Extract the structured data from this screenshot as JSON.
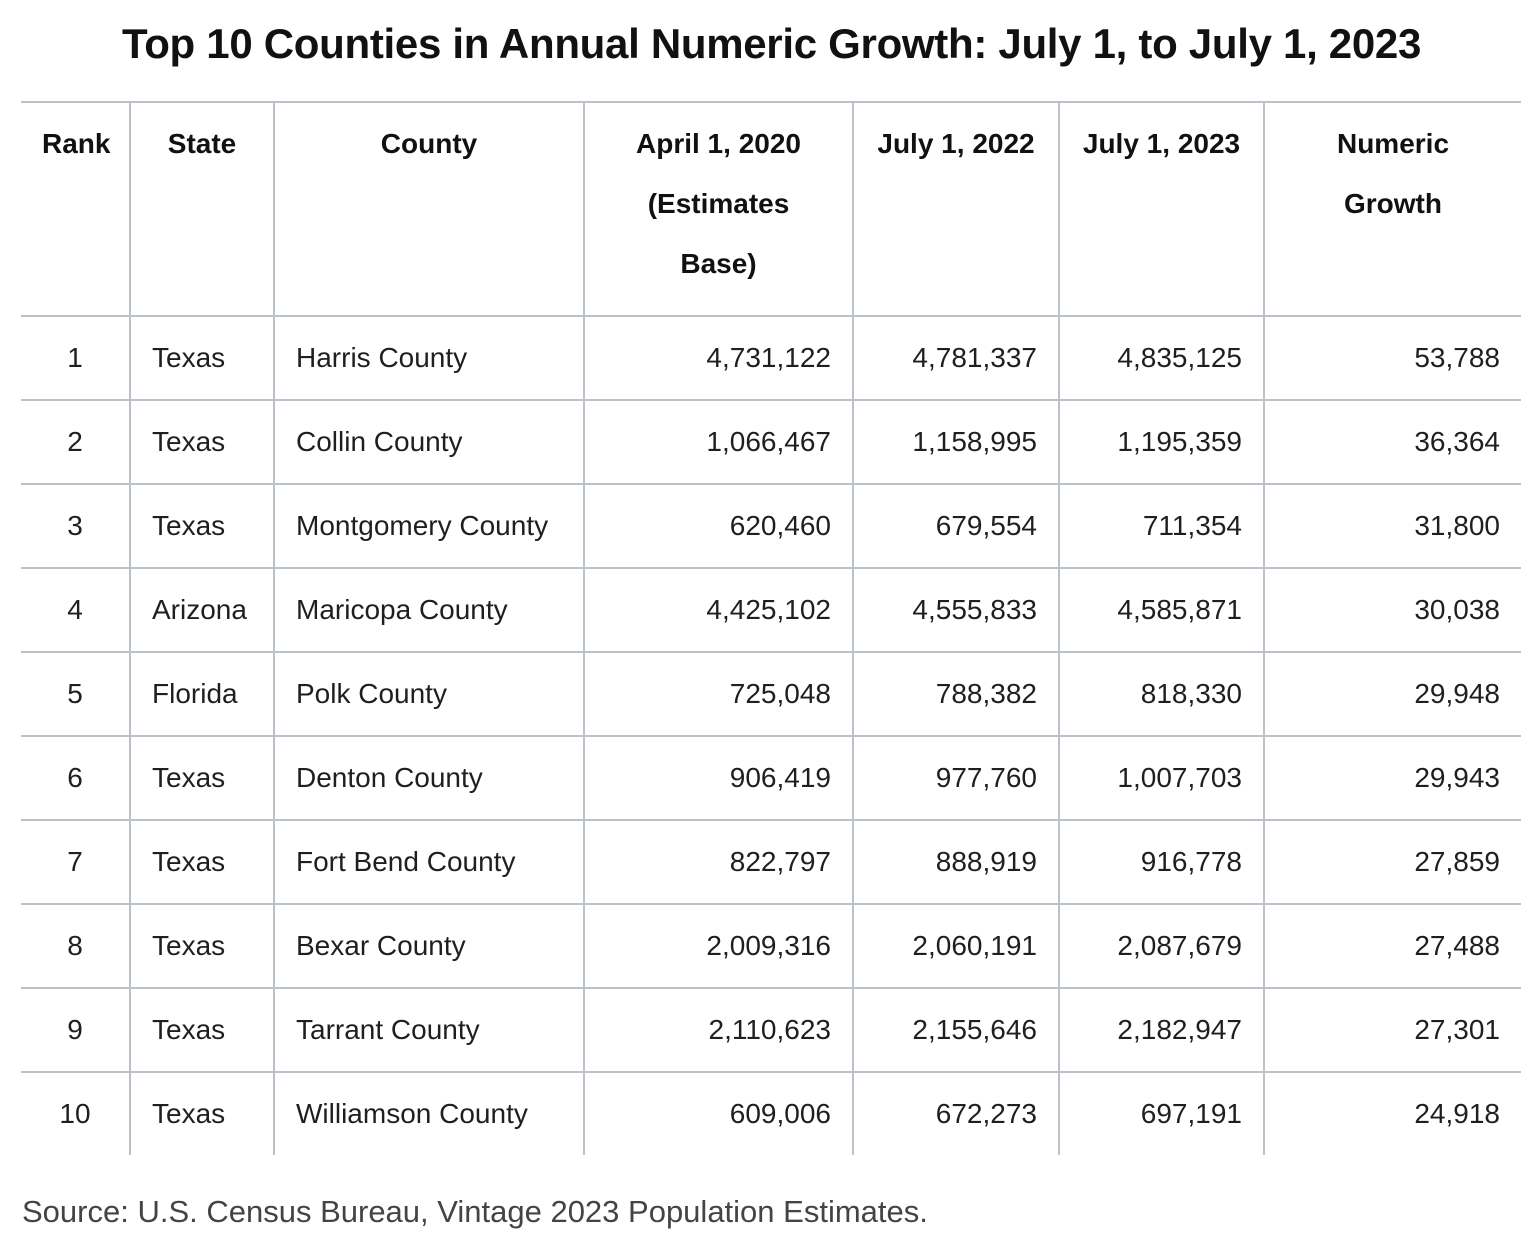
{
  "title": "Top 10 Counties in Annual Numeric Growth: July 1, to July 1, 2023",
  "table": {
    "headers": [
      "Rank",
      "State",
      "County",
      "April 1, 2020 (Estimates Base)",
      "July 1, 2022",
      "July 1, 2023",
      "Numeric Growth"
    ],
    "rows": [
      [
        "1",
        "Texas",
        "Harris County",
        "4,731,122",
        "4,781,337",
        "4,835,125",
        "53,788"
      ],
      [
        "2",
        "Texas",
        "Collin County",
        "1,066,467",
        "1,158,995",
        "1,195,359",
        "36,364"
      ],
      [
        "3",
        "Texas",
        "Montgomery County",
        "620,460",
        "679,554",
        "711,354",
        "31,800"
      ],
      [
        "4",
        "Arizona",
        "Maricopa County",
        "4,425,102",
        "4,555,833",
        "4,585,871",
        "30,038"
      ],
      [
        "5",
        "Florida",
        "Polk County",
        "725,048",
        "788,382",
        "818,330",
        "29,948"
      ],
      [
        "6",
        "Texas",
        "Denton County",
        "906,419",
        "977,760",
        "1,007,703",
        "29,943"
      ],
      [
        "7",
        "Texas",
        "Fort Bend County",
        "822,797",
        "888,919",
        "916,778",
        "27,859"
      ],
      [
        "8",
        "Texas",
        "Bexar County",
        "2,009,316",
        "2,060,191",
        "2,087,679",
        "27,488"
      ],
      [
        "9",
        "Texas",
        "Tarrant County",
        "2,110,623",
        "2,155,646",
        "2,182,947",
        "27,301"
      ],
      [
        "10",
        "Texas",
        "Williamson County",
        "609,006",
        "672,273",
        "697,191",
        "24,918"
      ]
    ]
  },
  "source": "Source: U.S. Census Bureau, Vintage 2023 Population Estimates.",
  "colors": {
    "border": "#bcc2ca",
    "text": "#1f1f1f"
  }
}
